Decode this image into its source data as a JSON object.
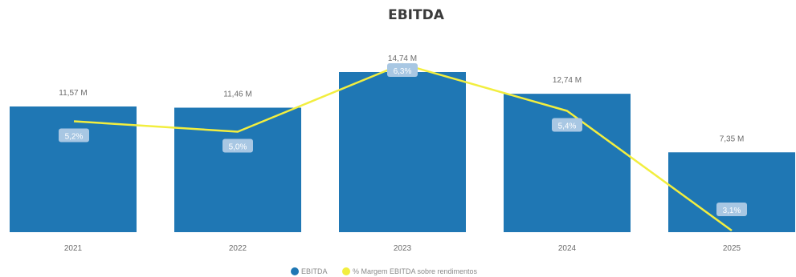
{
  "chart_data": {
    "type": "bar",
    "title": "EBITDA",
    "categories": [
      "2021",
      "2022",
      "2023",
      "2024",
      "2025"
    ],
    "series": [
      {
        "name": "EBITDA",
        "kind": "bar",
        "color": "#1f77b4",
        "values": [
          11.57,
          11.46,
          14.74,
          12.74,
          7.35
        ],
        "labels": [
          "11,57 M",
          "11,46 M",
          "14,74 M",
          "12,74 M",
          "7,35 M"
        ]
      },
      {
        "name": "% Margem EBITDA sobre rendimentos",
        "kind": "line",
        "color": "#f2ee3f",
        "values": [
          5.2,
          5.0,
          6.3,
          5.4,
          3.1
        ],
        "labels": [
          "5,2%",
          "5,0%",
          "6,3%",
          "5,4%",
          "3,1%"
        ]
      }
    ],
    "ylim_bars": [
      0,
      16
    ],
    "ylim_line": [
      3.1,
      6.3
    ],
    "legend_position": "bottom",
    "grid": false
  }
}
